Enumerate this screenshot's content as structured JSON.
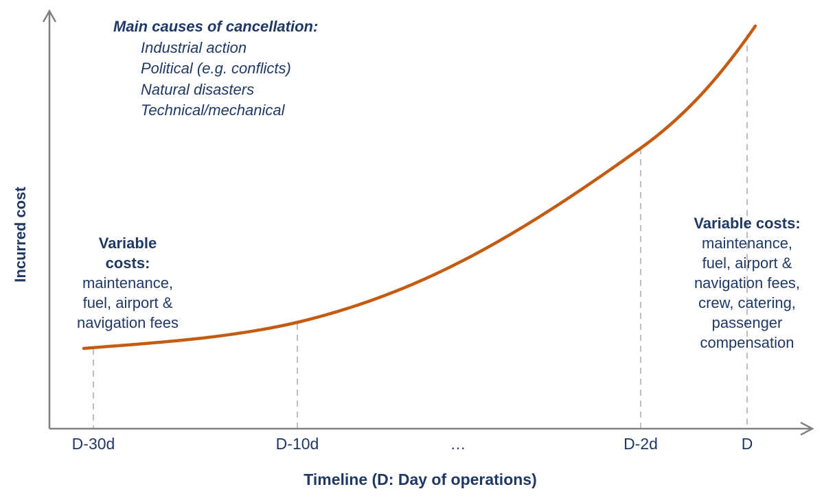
{
  "colors": {
    "curve": "#c55a11",
    "text": "#1f3864",
    "axis": "#7f7f7f",
    "guide": "#bfbfbf"
  },
  "axes": {
    "x_label": "Timeline (D: Day of operations)",
    "y_label": "Incurred cost",
    "ticks": [
      "D-30d",
      "D-10d",
      "…",
      "D-2d",
      "D"
    ]
  },
  "causes": {
    "title": "Main causes of cancellation:",
    "items": [
      "Industrial action",
      "Political (e.g. conflicts)",
      "Natural disasters",
      "Technical/mechanical"
    ]
  },
  "left_note": {
    "title_line1": "Variable",
    "title_line2": "costs:",
    "lines": [
      "maintenance,",
      "fuel, airport &",
      "navigation fees"
    ]
  },
  "right_note": {
    "title": "Variable costs:",
    "lines": [
      "maintenance,",
      "fuel, airport &",
      "navigation fees,",
      "crew, catering,",
      "passenger",
      "compensation"
    ]
  }
}
